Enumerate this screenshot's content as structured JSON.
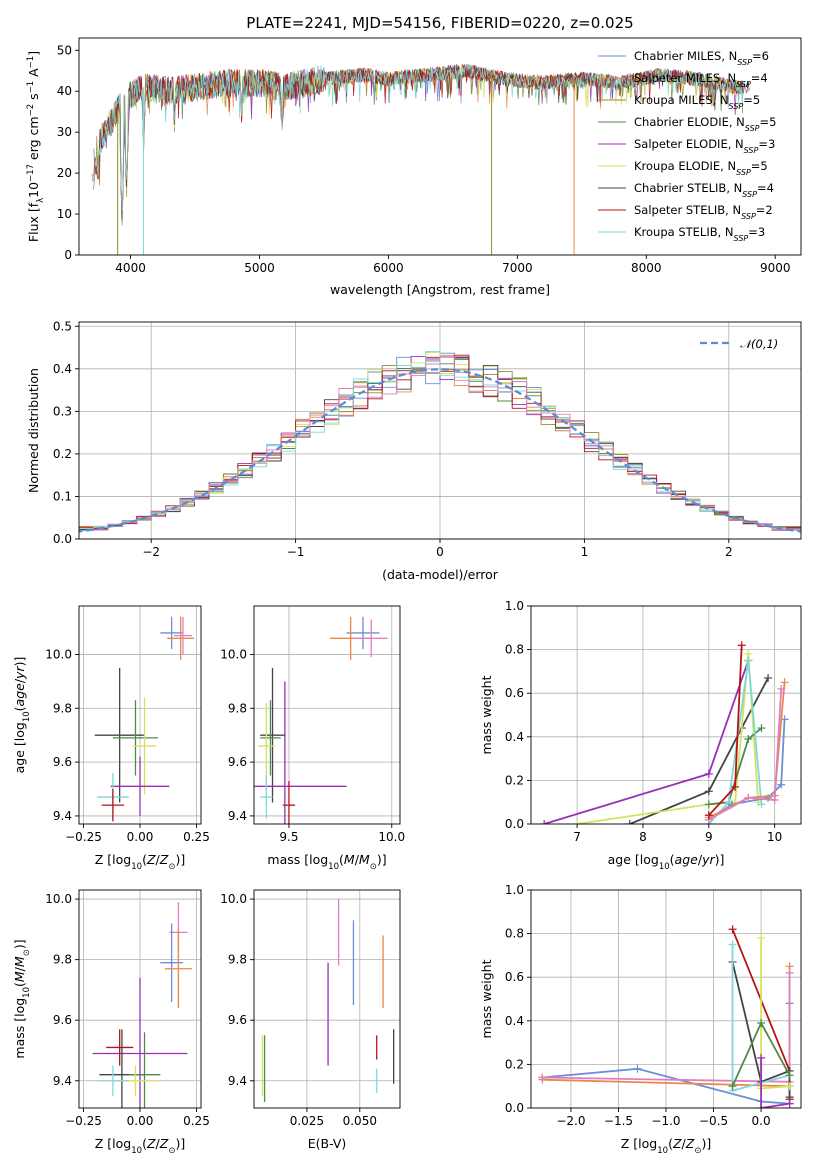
{
  "chart_data": [
    {
      "type": "line",
      "title": "PLATE=2241, MJD=54156, FIBERID=0220, z=0.025",
      "xlabel": "wavelength [Angstrom, rest frame]",
      "ylabel": "Flux [f_λ10^-17 erg cm^-2 s^-1 A^-1]",
      "xlim": [
        3600,
        9200
      ],
      "ylim": [
        0,
        53
      ],
      "xticks": [
        "4000",
        "5000",
        "6000",
        "7000",
        "8000",
        "9000"
      ],
      "yticks": [
        "0",
        "10",
        "20",
        "30",
        "40",
        "50"
      ],
      "legend_position": "upper-right",
      "grid": false,
      "series": [
        {
          "name": "Chabrier MILES, N_SSP=6",
          "color": "#6a8fd6"
        },
        {
          "name": "Salpeter MILES, N_SSP=4",
          "color": "#e8884a"
        },
        {
          "name": "Kroupa MILES, N_SSP=5",
          "color": "#9b8a2a"
        },
        {
          "name": "Chabrier ELODIE, N_SSP=5",
          "color": "#4f8a4a"
        },
        {
          "name": "Salpeter ELODIE, N_SSP=3",
          "color": "#9b2fb4"
        },
        {
          "name": "Kroupa ELODIE, N_SSP=5",
          "color": "#d4e25c"
        },
        {
          "name": "Chabrier STELIB, N_SSP=4",
          "color": "#444444"
        },
        {
          "name": "Salpeter STELIB, N_SSP=2",
          "color": "#b81414"
        },
        {
          "name": "Kroupa STELIB, N_SSP=3",
          "color": "#7dd8d8"
        }
      ],
      "continuum": {
        "x": [
          3700,
          3800,
          3950,
          4100,
          4300,
          4500,
          4800,
          5000,
          5200,
          5500,
          5800,
          6000,
          6300,
          6600,
          6900,
          7200,
          7500,
          7800,
          8100,
          8400,
          8700,
          8800
        ],
        "y": [
          24,
          30,
          38,
          41,
          40,
          41,
          42,
          42,
          41,
          43,
          44,
          43,
          44,
          45,
          43,
          42,
          43,
          42,
          44,
          43,
          41,
          41
        ]
      },
      "absorption_features": [
        {
          "x": 3934,
          "y": 8
        },
        {
          "x": 3969,
          "y": 15
        },
        {
          "x": 4102,
          "y": 25
        },
        {
          "x": 4340,
          "y": 30
        },
        {
          "x": 4861,
          "y": 32
        },
        {
          "x": 5175,
          "y": 30
        },
        {
          "x": 5890,
          "y": 36
        },
        {
          "x": 6563,
          "y": 38
        }
      ],
      "dropouts": [
        {
          "x": 3900,
          "color": "#9b8a2a"
        },
        {
          "x": 4100,
          "color": "#7dd8d8"
        },
        {
          "x": 6800,
          "color": "#9b8a2a"
        },
        {
          "x": 7440,
          "color": "#e8884a"
        }
      ]
    },
    {
      "type": "bar",
      "xlabel": "(data-model)/error",
      "ylabel": "Normed distribution",
      "xlim": [
        -2.5,
        2.5
      ],
      "ylim": [
        0,
        0.51
      ],
      "xticks": [
        "−2",
        "−1",
        "0",
        "1",
        "2"
      ],
      "yticks": [
        "0.0",
        "0.1",
        "0.2",
        "0.3",
        "0.4",
        "0.5"
      ],
      "grid": true,
      "legend_position": "upper-right",
      "reference_curve": {
        "name": "𝒩(0,1)",
        "color": "#5b8bd4",
        "style": "dashed"
      },
      "bin_width": 0.1,
      "bin_start": -2.6
    },
    {
      "type": "scatter",
      "xlabel": "Z [log10(Z/Z⊙)]",
      "ylabel": "age  [log10(age/yr)]",
      "xlim": [
        -0.27,
        0.27
      ],
      "ylim": [
        9.37,
        10.18
      ],
      "xticks": [
        "−0.25",
        "0.00",
        "0.25"
      ],
      "yticks": [
        "9.4",
        "9.6",
        "9.8",
        "10.0"
      ],
      "grid": true,
      "points": [
        {
          "x": 0.14,
          "y": 10.08,
          "ex": 0.05,
          "ey": 0.06,
          "color": "#6a8fd6"
        },
        {
          "x": 0.18,
          "y": 10.06,
          "ex": 0.06,
          "ey": 0.08,
          "color": "#e8884a"
        },
        {
          "x": 0.19,
          "y": 10.07,
          "ex": 0.04,
          "ey": 0.07,
          "color": "#e07ec0"
        },
        {
          "x": -0.09,
          "y": 9.7,
          "ex": 0.11,
          "ey": 0.25,
          "color": "#444444"
        },
        {
          "x": -0.02,
          "y": 9.69,
          "ex": 0.1,
          "ey": 0.14,
          "color": "#4f8a4a"
        },
        {
          "x": 0.02,
          "y": 9.66,
          "ex": 0.05,
          "ey": 0.18,
          "color": "#d4e25c"
        },
        {
          "x": 0.0,
          "y": 9.51,
          "ex": 0.13,
          "ey": 0.11,
          "color": "#9b2fb4"
        },
        {
          "x": -0.12,
          "y": 9.47,
          "ex": 0.07,
          "ey": 0.09,
          "color": "#7dd8d8"
        },
        {
          "x": -0.12,
          "y": 9.44,
          "ex": 0.05,
          "ey": 0.06,
          "color": "#b81414"
        }
      ]
    },
    {
      "type": "scatter",
      "xlabel": "mass [log10(M/M⊙)]",
      "xlim": [
        9.33,
        10.04
      ],
      "ylim": [
        9.37,
        10.18
      ],
      "xticks": [
        "9.5",
        "10.0"
      ],
      "yticks": [
        "9.4",
        "9.6",
        "9.8",
        "10.0"
      ],
      "grid": true,
      "points": [
        {
          "x": 9.86,
          "y": 10.08,
          "ex": 0.08,
          "ey": 0.06,
          "color": "#6a8fd6"
        },
        {
          "x": 9.8,
          "y": 10.06,
          "ex": 0.1,
          "ey": 0.08,
          "color": "#e8884a"
        },
        {
          "x": 9.9,
          "y": 10.06,
          "ex": 0.08,
          "ey": 0.07,
          "color": "#e07ec0"
        },
        {
          "x": 9.42,
          "y": 9.7,
          "ex": 0.06,
          "ey": 0.25,
          "color": "#444444"
        },
        {
          "x": 9.41,
          "y": 9.69,
          "ex": 0.05,
          "ey": 0.14,
          "color": "#4f8a4a"
        },
        {
          "x": 9.39,
          "y": 9.66,
          "ex": 0.04,
          "ey": 0.16,
          "color": "#d4e25c"
        },
        {
          "x": 9.48,
          "y": 9.51,
          "ex": 0.3,
          "ey": 0.39,
          "color": "#9b2fb4"
        },
        {
          "x": 9.39,
          "y": 9.47,
          "ex": 0.03,
          "ey": 0.08,
          "color": "#7dd8d8"
        },
        {
          "x": 9.5,
          "y": 9.44,
          "ex": 0.03,
          "ey": 0.09,
          "color": "#b81414"
        }
      ]
    },
    {
      "type": "line",
      "xlabel": "age  [log10(age/yr)]",
      "ylabel": "mass weight",
      "xlim": [
        6.3,
        10.4
      ],
      "ylim": [
        0,
        1.0
      ],
      "xticks": [
        "7",
        "8",
        "9",
        "10"
      ],
      "yticks": [
        "0.0",
        "0.2",
        "0.4",
        "0.6",
        "0.8",
        "1.0"
      ],
      "grid": true,
      "series": [
        {
          "color": "#9b2fb4",
          "x": [
            6.5,
            9.0,
            9.6
          ],
          "y": [
            0.0,
            0.23,
            0.75
          ]
        },
        {
          "color": "#444444",
          "x": [
            7.8,
            9.0,
            9.5,
            9.9
          ],
          "y": [
            0.0,
            0.15,
            0.44,
            0.67
          ]
        },
        {
          "color": "#d4e25c",
          "x": [
            7.0,
            9.0,
            9.4,
            9.6,
            9.75
          ],
          "y": [
            0.0,
            0.09,
            0.1,
            0.78,
            0.1
          ]
        },
        {
          "color": "#4f8a4a",
          "x": [
            9.0,
            9.3,
            9.6,
            9.8
          ],
          "y": [
            0.09,
            0.1,
            0.39,
            0.44
          ]
        },
        {
          "color": "#7dd8d8",
          "x": [
            9.0,
            9.3,
            9.6,
            9.8
          ],
          "y": [
            0.0,
            0.1,
            0.75,
            0.09
          ]
        },
        {
          "color": "#6a8fd6",
          "x": [
            9.0,
            9.35,
            9.9,
            10.1,
            10.15
          ],
          "y": [
            0.02,
            0.09,
            0.12,
            0.18,
            0.48
          ]
        },
        {
          "color": "#e8884a",
          "x": [
            9.0,
            9.6,
            10.0,
            10.15
          ],
          "y": [
            0.03,
            0.12,
            0.13,
            0.65
          ]
        },
        {
          "color": "#e07ec0",
          "x": [
            9.0,
            9.6,
            10.0,
            10.1
          ],
          "y": [
            0.02,
            0.12,
            0.11,
            0.62
          ]
        },
        {
          "color": "#b81414",
          "x": [
            9.0,
            9.4,
            9.5
          ],
          "y": [
            0.04,
            0.17,
            0.82
          ]
        }
      ]
    },
    {
      "type": "scatter",
      "xlabel": "Z [log10(Z/Z⊙)]",
      "ylabel": "mass [log10(M/M⊙)]",
      "xlim": [
        -0.27,
        0.27
      ],
      "ylim": [
        9.31,
        10.03
      ],
      "xticks": [
        "−0.25",
        "0.00",
        "0.25"
      ],
      "yticks": [
        "9.4",
        "9.6",
        "9.8",
        "10.0"
      ],
      "grid": true,
      "points": [
        {
          "x": 0.17,
          "y": 9.89,
          "ex": 0.04,
          "ey": 0.1,
          "color": "#e07ec0"
        },
        {
          "x": 0.14,
          "y": 9.79,
          "ex": 0.05,
          "ey": 0.13,
          "color": "#6a8fd6"
        },
        {
          "x": 0.17,
          "y": 9.77,
          "ex": 0.06,
          "ey": 0.13,
          "color": "#e8884a"
        },
        {
          "x": 0.0,
          "y": 9.49,
          "ex": 0.21,
          "ey": 0.25,
          "color": "#9b2fb4"
        },
        {
          "x": -0.09,
          "y": 9.51,
          "ex": 0.06,
          "ey": 0.06,
          "color": "#b81414"
        },
        {
          "x": -0.08,
          "y": 9.42,
          "ex": 0.1,
          "ey": 0.15,
          "color": "#444444"
        },
        {
          "x": 0.02,
          "y": 9.42,
          "ex": 0.07,
          "ey": 0.14,
          "color": "#4f8a4a"
        },
        {
          "x": -0.02,
          "y": 9.4,
          "ex": 0.1,
          "ey": 0.05,
          "color": "#d4e25c"
        },
        {
          "x": -0.12,
          "y": 9.4,
          "ex": 0.07,
          "ey": 0.05,
          "color": "#7dd8d8"
        }
      ]
    },
    {
      "type": "scatter",
      "xlabel": "E(B-V)",
      "xlim": [
        0.0,
        0.069
      ],
      "ylim": [
        9.31,
        10.03
      ],
      "xticks": [
        "0.025",
        "0.050"
      ],
      "yticks": [
        "9.4",
        "9.6",
        "9.8",
        "10.0"
      ],
      "grid": true,
      "points": [
        {
          "x": 0.04,
          "y": 9.89,
          "ey": 0.11,
          "color": "#e07ec0"
        },
        {
          "x": 0.047,
          "y": 9.79,
          "ey": 0.14,
          "color": "#6a8fd6"
        },
        {
          "x": 0.061,
          "y": 9.76,
          "ey": 0.12,
          "color": "#e8884a"
        },
        {
          "x": 0.035,
          "y": 9.62,
          "ey": 0.17,
          "color": "#9b2fb4"
        },
        {
          "x": 0.058,
          "y": 9.51,
          "ey": 0.04,
          "color": "#b81414"
        },
        {
          "x": 0.066,
          "y": 9.48,
          "ey": 0.09,
          "color": "#444444"
        },
        {
          "x": 0.058,
          "y": 9.4,
          "ey": 0.04,
          "color": "#7dd8d8"
        },
        {
          "x": 0.005,
          "y": 9.44,
          "ey": 0.11,
          "color": "#4f8a4a"
        },
        {
          "x": 0.004,
          "y": 9.45,
          "ey": 0.1,
          "color": "#d4e25c"
        }
      ]
    },
    {
      "type": "line",
      "xlabel": "Z [log10(Z/Z⊙)]",
      "ylabel": "mass weight",
      "xlim": [
        -2.42,
        0.42
      ],
      "ylim": [
        0,
        1.0
      ],
      "xticks": [
        "−2.0",
        "−1.5",
        "−1.0",
        "−0.5",
        "0.0"
      ],
      "yticks": [
        "0.0",
        "0.2",
        "0.4",
        "0.6",
        "0.8",
        "1.0"
      ],
      "grid": true,
      "series": [
        {
          "color": "#6a8fd6",
          "x": [
            -2.3,
            -1.3,
            0.0,
            0.3,
            0.3
          ],
          "y": [
            0.14,
            0.18,
            0.03,
            0.02,
            0.48
          ]
        },
        {
          "color": "#e8884a",
          "x": [
            -2.3,
            0.3,
            0.3
          ],
          "y": [
            0.13,
            0.1,
            0.65
          ]
        },
        {
          "color": "#e07ec0",
          "x": [
            -2.3,
            0.3,
            0.3
          ],
          "y": [
            0.14,
            0.12,
            0.62
          ]
        },
        {
          "color": "#b81414",
          "x": [
            -0.3,
            0.3,
            0.3
          ],
          "y": [
            0.82,
            0.17,
            0.04
          ]
        },
        {
          "color": "#444444",
          "x": [
            -0.3,
            0.0,
            0.3,
            0.3
          ],
          "y": [
            0.67,
            0.12,
            0.17,
            0.05
          ]
        },
        {
          "color": "#7dd8d8",
          "x": [
            -0.3,
            -0.3,
            0.3
          ],
          "y": [
            0.75,
            0.08,
            0.15
          ]
        },
        {
          "color": "#d4e25c",
          "x": [
            0.0,
            0.0,
            0.3
          ],
          "y": [
            0.78,
            0.09,
            0.1
          ]
        },
        {
          "color": "#4f8a4a",
          "x": [
            -0.3,
            0.0,
            0.3
          ],
          "y": [
            0.1,
            0.39,
            0.15
          ]
        },
        {
          "color": "#9b2fb4",
          "x": [
            0.0,
            0.0,
            0.3
          ],
          "y": [
            0.23,
            0.0,
            0.02
          ]
        }
      ]
    }
  ]
}
